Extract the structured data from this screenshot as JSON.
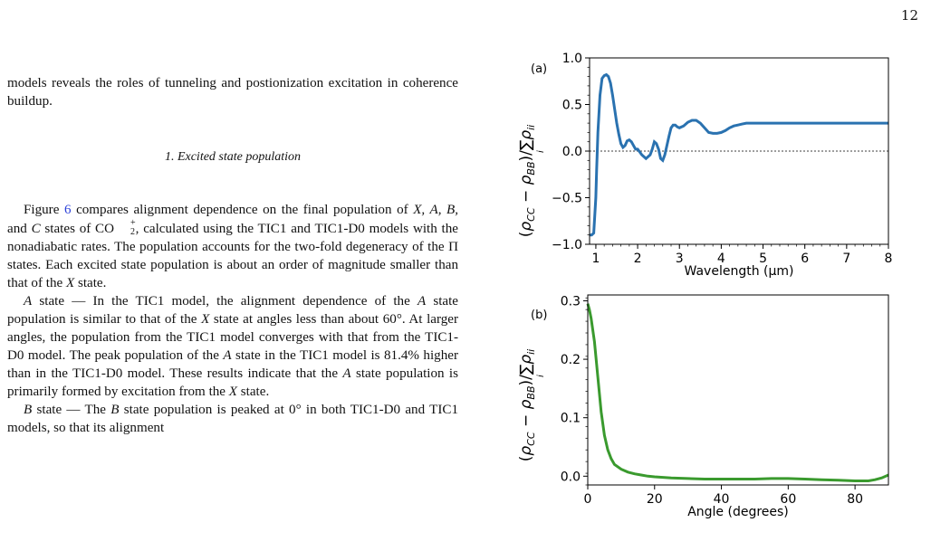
{
  "page_number": "12",
  "text": {
    "intro": "models reveals the roles of tunneling and postionization excitation in coherence buildup.",
    "section_heading": "1.   Excited state population",
    "p1_a": "Figure ",
    "p1_ref": "6",
    "p1_b": " compares alignment dependence on the final population of ",
    "p1_c": " states of CO",
    "p1_d": ", calculated using the TIC1 and TIC1-D0 models with the nonadiabatic rates. The population accounts for the two-fold degeneracy of the Π states. Each excited state population is about an order of magnitude smaller than that of the ",
    "p1_e": " state.",
    "p2_a": " state — In the TIC1 model, the alignment dependence of the ",
    "p2_b": " state population is similar to that of the ",
    "p2_c": " state at angles less than about 60°. At larger angles, the population from the TIC1 model converges with that from the TIC1-D0 model. The peak population of the ",
    "p2_d": " state in the TIC1 model is 81.4% higher than in the TIC1-D0 model. These results indicate that the ",
    "p2_e": " state population is primarily formed by excitation from the ",
    "p2_f": " state.",
    "p3_a": " state — The ",
    "p3_b": " state population is peaked at 0° in both TIC1-D0 and TIC1 models, so that its alignment",
    "sym_X": "X",
    "sym_A": "A",
    "sym_B": "B",
    "sym_C": "C",
    "sym_X_list": "X, A, B,",
    "sym_and": " and ",
    "sym_charge": "+",
    "sym_sub": "2"
  },
  "chart_data": [
    {
      "type": "line",
      "panel_label": "(a)",
      "xlabel": "Wavelength (μm)",
      "ylabel": "(ρCC − ρBB)/Σi ρii",
      "xlim": [
        0.85,
        8.0
      ],
      "ylim": [
        -1.0,
        1.0
      ],
      "xticks": [
        1,
        2,
        3,
        4,
        5,
        6,
        7,
        8
      ],
      "yticks": [
        -1.0,
        -0.5,
        0.0,
        0.5,
        1.0
      ],
      "ytick_labels": [
        "−1.0",
        "−0.5",
        "0.0",
        "0.5",
        "1.0"
      ],
      "color": "#2a72b0",
      "reference_line": 0.0,
      "series": [
        {
          "x": [
            0.85,
            0.9,
            0.95,
            1.0,
            1.02,
            1.05,
            1.1,
            1.15,
            1.2,
            1.25,
            1.3,
            1.35,
            1.4,
            1.45,
            1.5,
            1.55,
            1.6,
            1.65,
            1.7,
            1.75,
            1.8,
            1.85,
            1.9,
            1.95,
            2.0,
            2.1,
            2.2,
            2.3,
            2.35,
            2.4,
            2.45,
            2.5,
            2.55,
            2.6,
            2.65,
            2.7,
            2.75,
            2.8,
            2.85,
            2.9,
            2.95,
            3.0,
            3.1,
            3.2,
            3.3,
            3.4,
            3.5,
            3.6,
            3.7,
            3.8,
            3.9,
            4.0,
            4.1,
            4.2,
            4.3,
            4.4,
            4.5,
            4.6,
            4.8,
            5.0,
            5.5,
            6.0,
            6.5,
            7.0,
            7.5,
            8.0
          ],
          "y": [
            -0.9,
            -0.9,
            -0.88,
            -0.5,
            -0.2,
            0.2,
            0.6,
            0.78,
            0.81,
            0.82,
            0.8,
            0.73,
            0.6,
            0.45,
            0.3,
            0.18,
            0.08,
            0.04,
            0.06,
            0.11,
            0.12,
            0.1,
            0.06,
            0.02,
            0.02,
            -0.04,
            -0.08,
            -0.04,
            0.02,
            0.1,
            0.08,
            0.02,
            -0.08,
            -0.1,
            -0.04,
            0.06,
            0.16,
            0.25,
            0.28,
            0.28,
            0.26,
            0.25,
            0.27,
            0.31,
            0.33,
            0.33,
            0.3,
            0.25,
            0.2,
            0.19,
            0.19,
            0.2,
            0.22,
            0.25,
            0.27,
            0.28,
            0.29,
            0.3,
            0.3,
            0.3,
            0.3,
            0.3,
            0.3,
            0.3,
            0.3,
            0.3
          ]
        }
      ]
    },
    {
      "type": "line",
      "panel_label": "(b)",
      "xlabel": "Angle (degrees)",
      "ylabel": "(ρCC − ρBB)/Σi ρii",
      "xlim": [
        0,
        90
      ],
      "ylim": [
        -0.015,
        0.31
      ],
      "xticks": [
        0,
        20,
        40,
        60,
        80
      ],
      "yticks": [
        0.0,
        0.1,
        0.2,
        0.3
      ],
      "ytick_labels": [
        "0.0",
        "0.1",
        "0.2",
        "0.3"
      ],
      "color": "#3a9a2e",
      "series": [
        {
          "x": [
            0,
            0.5,
            1,
            2,
            3,
            4,
            5,
            6,
            7,
            8,
            10,
            12,
            14,
            16,
            18,
            20,
            25,
            30,
            35,
            40,
            45,
            50,
            55,
            60,
            65,
            70,
            75,
            80,
            84,
            86,
            88,
            90
          ],
          "y": [
            0.295,
            0.285,
            0.27,
            0.23,
            0.17,
            0.11,
            0.07,
            0.045,
            0.03,
            0.02,
            0.012,
            0.007,
            0.004,
            0.002,
            0.0,
            -0.001,
            -0.003,
            -0.004,
            -0.005,
            -0.005,
            -0.005,
            -0.005,
            -0.004,
            -0.004,
            -0.005,
            -0.006,
            -0.007,
            -0.008,
            -0.008,
            -0.006,
            -0.003,
            0.002
          ]
        }
      ]
    }
  ]
}
